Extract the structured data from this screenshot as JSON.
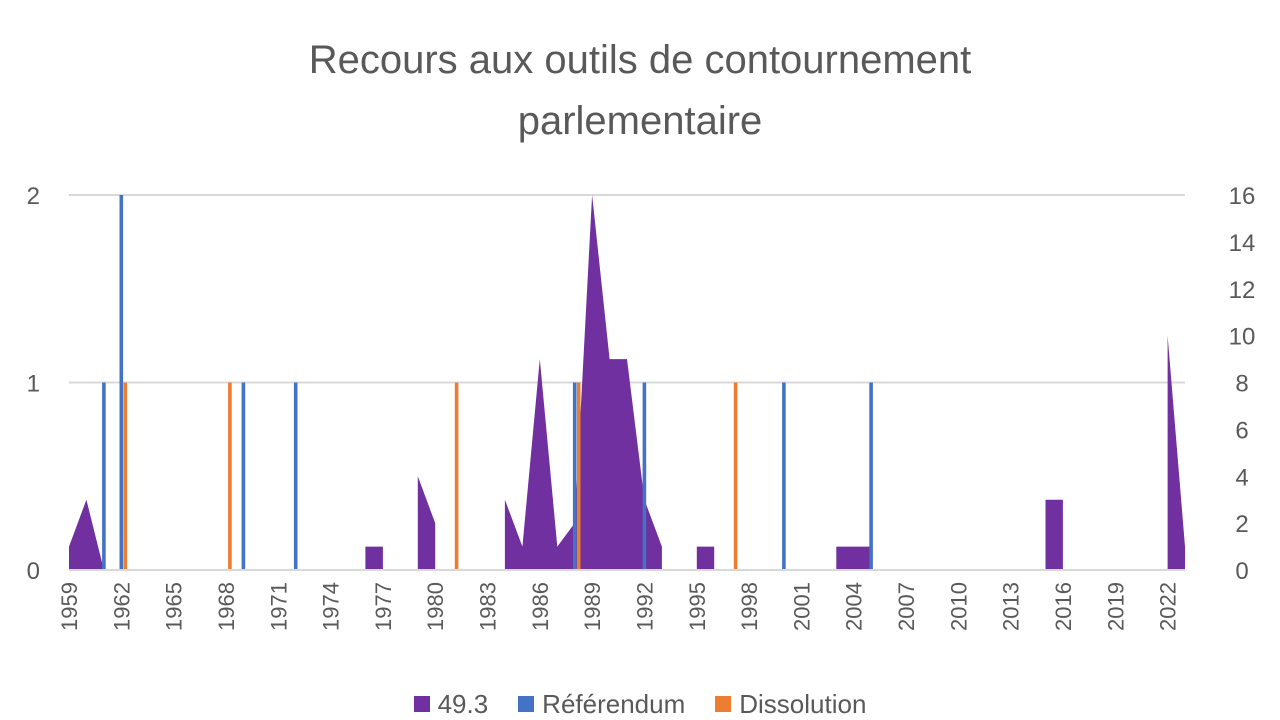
{
  "chart_data": {
    "type": "bar",
    "title": "Recours aux outils de contournement parlementaire",
    "title_lines": [
      "Recours aux outils de contournement",
      "parlementaire"
    ],
    "x_start": 1959,
    "x_end": 2023,
    "x_tick_labels": [
      "1959",
      "1962",
      "1965",
      "1968",
      "1971",
      "1974",
      "1977",
      "1980",
      "1983",
      "1986",
      "1989",
      "1992",
      "1995",
      "1998",
      "2001",
      "2004",
      "2007",
      "2010",
      "2013",
      "2016",
      "2019",
      "2022"
    ],
    "y_left_ticks": [
      "0",
      "1",
      "2"
    ],
    "y_left_range": [
      0,
      2
    ],
    "y_right_ticks": [
      "0",
      "2",
      "4",
      "6",
      "8",
      "10",
      "12",
      "14",
      "16"
    ],
    "y_right_range": [
      0,
      16
    ],
    "grid": true,
    "legend_position": "bottom",
    "series": [
      {
        "name": "49.3",
        "chart": "area",
        "axis": "right",
        "color": "#7030A0",
        "points": [
          [
            1959,
            1
          ],
          [
            1960,
            3
          ],
          [
            1961,
            0
          ],
          [
            1976,
            0
          ],
          [
            1976,
            1
          ],
          [
            1977,
            1
          ],
          [
            1977,
            0
          ],
          [
            1979,
            0
          ],
          [
            1979,
            4
          ],
          [
            1980,
            2
          ],
          [
            1980,
            0
          ],
          [
            1984,
            0
          ],
          [
            1984,
            3
          ],
          [
            1985,
            1
          ],
          [
            1986,
            9
          ],
          [
            1987,
            1
          ],
          [
            1988,
            2
          ],
          [
            1989,
            16
          ],
          [
            1990,
            9
          ],
          [
            1991,
            9
          ],
          [
            1992,
            3
          ],
          [
            1993,
            1
          ],
          [
            1993,
            0
          ],
          [
            1995,
            0
          ],
          [
            1995,
            1
          ],
          [
            1996,
            1
          ],
          [
            1996,
            0
          ],
          [
            2003,
            0
          ],
          [
            2003,
            1
          ],
          [
            2005,
            1
          ],
          [
            2005,
            0
          ],
          [
            2015,
            0
          ],
          [
            2015,
            3
          ],
          [
            2016,
            3
          ],
          [
            2016,
            0
          ],
          [
            2022,
            0
          ],
          [
            2022,
            10
          ],
          [
            2023,
            1
          ]
        ]
      },
      {
        "name": "Référendum",
        "chart": "bar",
        "axis": "left",
        "color": "#4472C4",
        "events": [
          [
            1961,
            1
          ],
          [
            1962,
            2
          ],
          [
            1969,
            1
          ],
          [
            1972,
            1
          ],
          [
            1988,
            1
          ],
          [
            1992,
            1
          ],
          [
            2000,
            1
          ],
          [
            2005,
            1
          ]
        ]
      },
      {
        "name": "Dissolution",
        "chart": "bar",
        "axis": "left",
        "color": "#ED7D31",
        "events": [
          [
            1962,
            1
          ],
          [
            1968,
            1
          ],
          [
            1981,
            1
          ],
          [
            1988,
            1
          ],
          [
            1997,
            1
          ]
        ]
      }
    ]
  }
}
